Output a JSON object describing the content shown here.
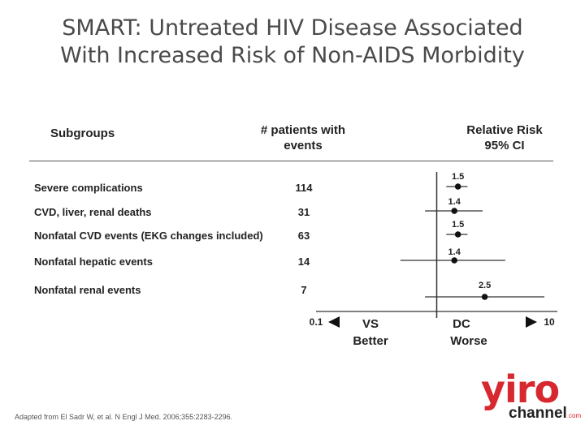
{
  "title": {
    "line1": "SMART:  Untreated HIV Disease Associated",
    "line2": "With Increased Risk of Non-AIDS Morbidity"
  },
  "headers": {
    "subgroups": "Subgroups",
    "patients_line1": "# patients with",
    "patients_line2": "events",
    "rr_line1": "Relative Risk",
    "rr_line2": "95% CI"
  },
  "rows": [
    {
      "label": "Severe complications",
      "events": "114"
    },
    {
      "label": "CVD, liver, renal deaths",
      "events": "31"
    },
    {
      "label": "Nonfatal CVD events (EKG changes included)",
      "events": "63"
    },
    {
      "label": "Nonfatal hepatic events",
      "events": "14"
    },
    {
      "label": "Nonfatal renal events",
      "events": "7"
    }
  ],
  "axis": {
    "min_label": "0.1",
    "max_label": "10",
    "left_abbrev": "VS",
    "left_label": "Better",
    "right_abbrev": "DC",
    "right_label": "Worse"
  },
  "chart_data": {
    "type": "scatter",
    "xscale": "log",
    "xlim": [
      0.1,
      10
    ],
    "reference_line": 1,
    "categories": [
      "Severe complications",
      "CVD, liver, renal deaths",
      "Nonfatal CVD events (EKG changes included)",
      "Nonfatal hepatic events",
      "Nonfatal renal events"
    ],
    "estimates": [
      1.5,
      1.4,
      1.5,
      1.4,
      2.5
    ],
    "estimate_labels": [
      "1.5",
      "1.4",
      "1.5",
      "1.4",
      "2.5"
    ],
    "ci_low": [
      1.2,
      0.8,
      1.2,
      0.5,
      0.8
    ],
    "ci_high": [
      1.8,
      2.4,
      1.8,
      3.7,
      7.8
    ]
  },
  "footnote": "Adapted from El Sadr W, et al. N Engl J Med. 2006;355:2283-2296.",
  "logo": {
    "word": "yiro",
    "sub": "channel",
    "tld": ".com"
  },
  "colors": {
    "title": "#4a4a4a",
    "text": "#222222",
    "brand": "#d7282f"
  }
}
